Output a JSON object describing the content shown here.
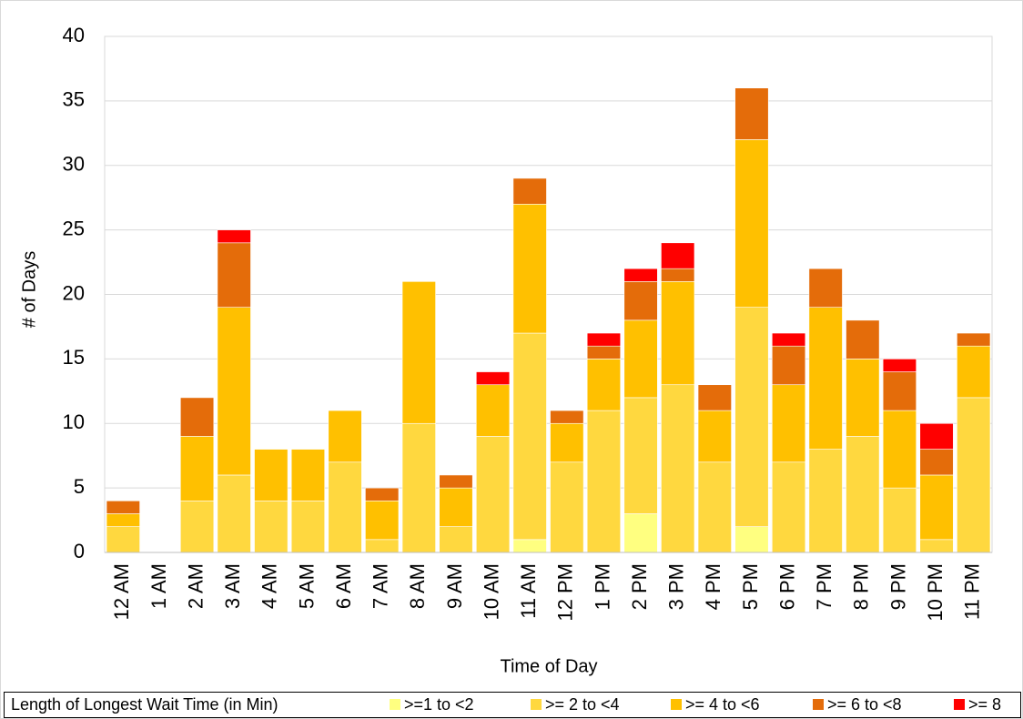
{
  "chart_data": {
    "type": "stacked_bar",
    "x_label": "Time of Day",
    "y_label": "# of Days",
    "legend_title": "Length of Longest Wait Time (in Min)",
    "categories": [
      "12 AM",
      "1 AM",
      "2 AM",
      "3 AM",
      "4 AM",
      "5 AM",
      "6 AM",
      "7 AM",
      "8 AM",
      "9 AM",
      "10 AM",
      "11 AM",
      "12 PM",
      "1 PM",
      "2 PM",
      "3 PM",
      "4 PM",
      "5 PM",
      "6 PM",
      "7 PM",
      "8 PM",
      "9 PM",
      "10 PM",
      "11 PM"
    ],
    "series": [
      {
        "name": ">=1 to <2",
        "color": "#ffff80",
        "values": [
          0,
          0,
          0,
          0,
          0,
          0,
          0,
          0,
          0,
          0,
          0,
          1,
          0,
          0,
          3,
          0,
          0,
          2,
          0,
          0,
          0,
          0,
          0,
          0
        ]
      },
      {
        "name": ">= 2 to <4",
        "color": "#ffd83f",
        "values": [
          2,
          0,
          4,
          6,
          4,
          4,
          7,
          1,
          10,
          2,
          9,
          16,
          7,
          11,
          9,
          13,
          7,
          17,
          7,
          8,
          9,
          5,
          1,
          12
        ]
      },
      {
        "name": ">= 4 to <6",
        "color": "#ffc000",
        "values": [
          1,
          0,
          5,
          13,
          4,
          4,
          4,
          3,
          11,
          3,
          4,
          10,
          3,
          4,
          6,
          8,
          4,
          13,
          6,
          11,
          6,
          6,
          5,
          4
        ]
      },
      {
        "name": ">= 6 to <8",
        "color": "#e46c0a",
        "values": [
          1,
          0,
          3,
          5,
          0,
          0,
          0,
          1,
          0,
          1,
          0,
          2,
          1,
          1,
          3,
          1,
          2,
          4,
          3,
          3,
          3,
          3,
          2,
          1
        ]
      },
      {
        "name": ">= 8",
        "color": "#ff0000",
        "values": [
          0,
          0,
          0,
          1,
          0,
          0,
          0,
          0,
          0,
          0,
          1,
          0,
          0,
          1,
          1,
          2,
          0,
          0,
          1,
          0,
          0,
          1,
          2,
          0
        ]
      }
    ],
    "ylim": [
      0,
      40
    ],
    "yticks": [
      0,
      5,
      10,
      15,
      20,
      25,
      30,
      35,
      40
    ],
    "grid": true
  }
}
